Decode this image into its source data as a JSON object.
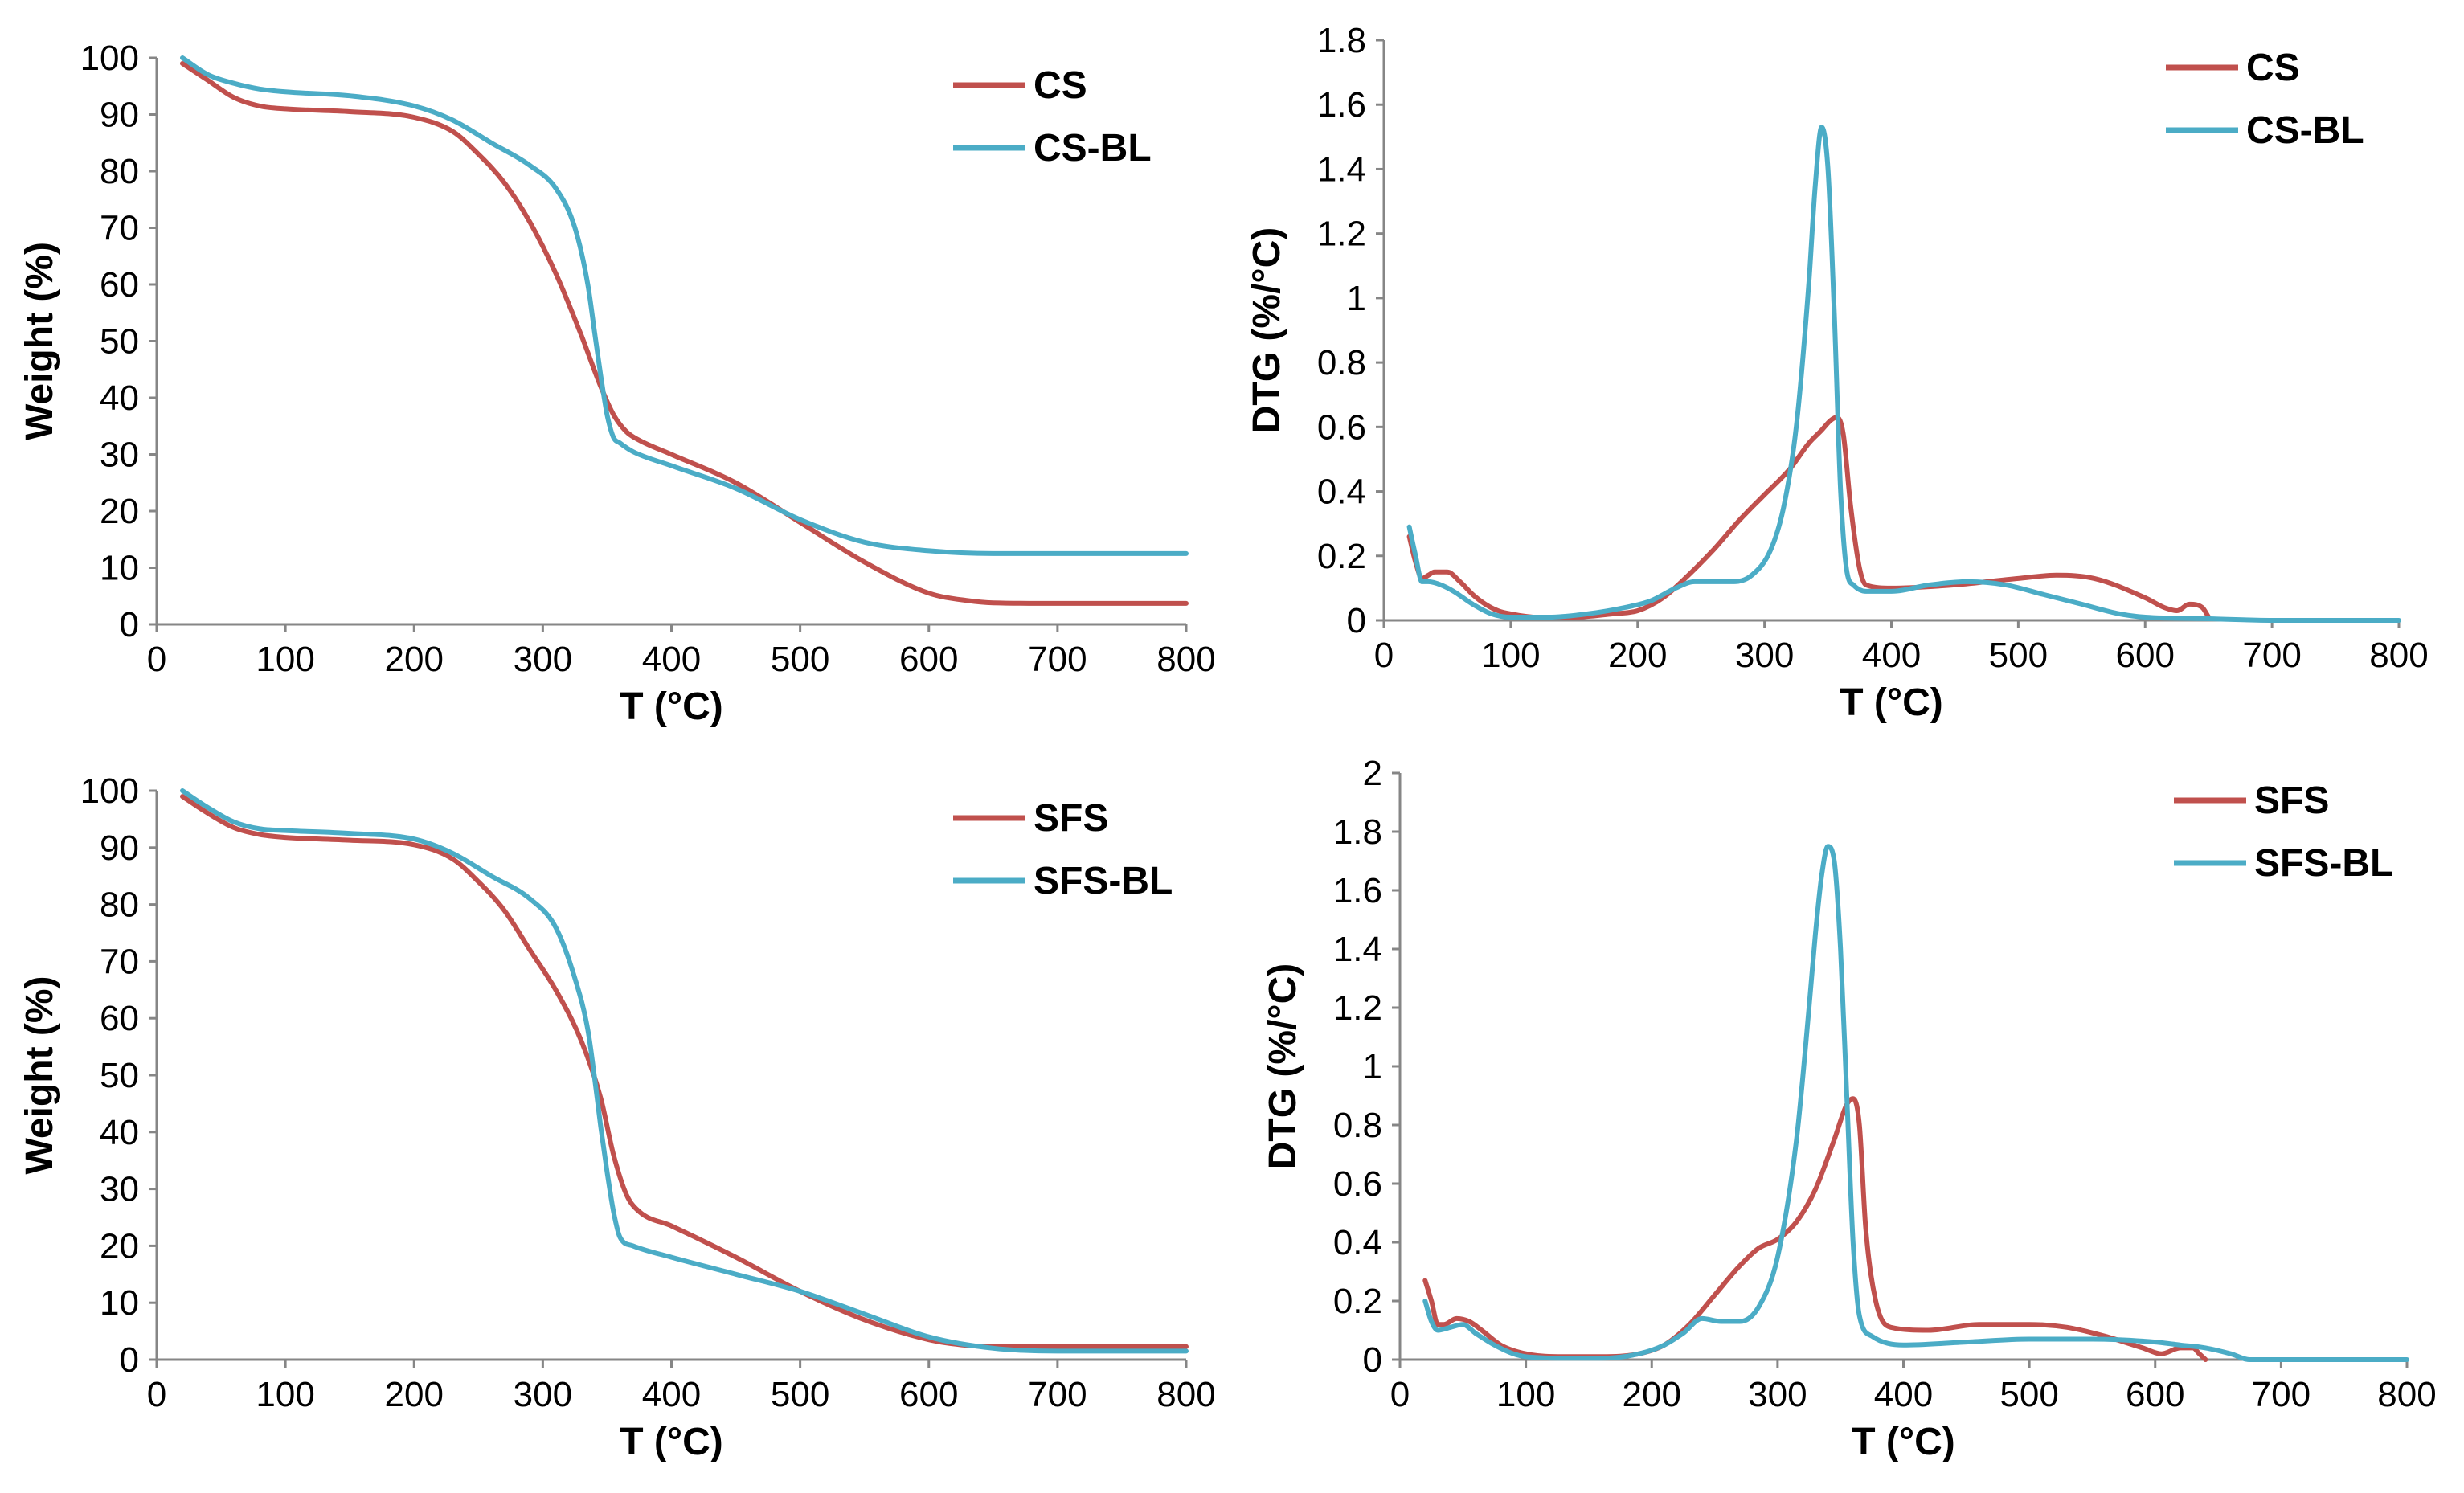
{
  "colors": {
    "red": "#C0504D",
    "blue": "#4BACC6"
  },
  "chart_data": [
    {
      "id": "tga_cs",
      "type": "line",
      "xlabel": "T (°C)",
      "ylabel": "Weight (%)",
      "xlim": [
        0,
        800
      ],
      "ylim": [
        0,
        100
      ],
      "xticks": [
        0,
        100,
        200,
        300,
        400,
        500,
        600,
        700,
        800
      ],
      "yticks": [
        0,
        10,
        20,
        30,
        40,
        50,
        60,
        70,
        80,
        90,
        100
      ],
      "xtick_labels": [
        "0",
        "100",
        "200",
        "300",
        "400",
        "500",
        "600",
        "700",
        "800"
      ],
      "ytick_labels": [
        "0",
        "10",
        "20",
        "30",
        "40",
        "50",
        "60",
        "70",
        "80",
        "90",
        "100"
      ],
      "legend_position": "top-right",
      "series": [
        {
          "name": "CS",
          "color": "#C0504D",
          "x": [
            20,
            40,
            60,
            80,
            100,
            150,
            200,
            230,
            250,
            270,
            290,
            310,
            330,
            345,
            355,
            365,
            375,
            400,
            450,
            500,
            550,
            600,
            630,
            650,
            700,
            750,
            800
          ],
          "y": [
            99,
            96,
            93,
            91.5,
            91,
            90.5,
            89.5,
            87,
            83,
            78,
            71,
            62,
            51,
            42,
            37,
            34,
            32.5,
            30,
            25,
            18,
            11,
            5.5,
            4.2,
            3.8,
            3.7,
            3.7,
            3.7
          ]
        },
        {
          "name": "CS-BL",
          "color": "#4BACC6",
          "x": [
            20,
            40,
            60,
            80,
            100,
            150,
            200,
            230,
            260,
            290,
            310,
            325,
            335,
            340,
            345,
            350,
            355,
            360,
            370,
            400,
            450,
            500,
            550,
            600,
            650,
            700,
            750,
            800
          ],
          "y": [
            100,
            97,
            95.5,
            94.5,
            94,
            93.3,
            91.5,
            89,
            85,
            81,
            77,
            70,
            60,
            52,
            44,
            37,
            33,
            32,
            30.5,
            28,
            24,
            18.5,
            14.5,
            13,
            12.5,
            12.5,
            12.5,
            12.5
          ]
        }
      ]
    },
    {
      "id": "dtg_cs",
      "type": "line",
      "xlabel": "T (°C)",
      "ylabel": "DTG (%/°C)",
      "xlim": [
        0,
        800
      ],
      "ylim": [
        0,
        1.8
      ],
      "xticks": [
        0,
        100,
        200,
        300,
        400,
        500,
        600,
        700,
        800
      ],
      "yticks": [
        0,
        0.2,
        0.4,
        0.6,
        0.8,
        1.0,
        1.2,
        1.4,
        1.6,
        1.8
      ],
      "xtick_labels": [
        "0",
        "100",
        "200",
        "300",
        "400",
        "500",
        "600",
        "700",
        "800"
      ],
      "ytick_labels": [
        "0",
        "0.2",
        "0.4",
        "0.6",
        "0.8",
        "1",
        "1.2",
        "1.4",
        "1.6",
        "1.8"
      ],
      "legend_position": "top-right",
      "series": [
        {
          "name": "CS",
          "color": "#C0504D",
          "x": [
            20,
            25,
            30,
            35,
            40,
            50,
            60,
            70,
            80,
            90,
            100,
            120,
            150,
            180,
            200,
            220,
            240,
            260,
            280,
            300,
            320,
            335,
            345,
            352,
            357,
            362,
            368,
            375,
            380,
            400,
            450,
            500,
            530,
            560,
            600,
            615,
            625,
            635,
            645,
            650
          ],
          "y": [
            0.26,
            0.18,
            0.13,
            0.14,
            0.15,
            0.15,
            0.12,
            0.08,
            0.05,
            0.03,
            0.02,
            0.01,
            0.01,
            0.02,
            0.03,
            0.07,
            0.14,
            0.22,
            0.31,
            0.39,
            0.47,
            0.55,
            0.59,
            0.62,
            0.63,
            0.58,
            0.35,
            0.16,
            0.11,
            0.1,
            0.11,
            0.13,
            0.14,
            0.13,
            0.07,
            0.04,
            0.03,
            0.05,
            0.04,
            0.01
          ]
        },
        {
          "name": "CS-BL",
          "color": "#4BACC6",
          "x": [
            20,
            25,
            30,
            35,
            45,
            55,
            70,
            85,
            100,
            130,
            160,
            190,
            210,
            230,
            245,
            260,
            275,
            290,
            305,
            315,
            325,
            335,
            340,
            345,
            350,
            355,
            360,
            365,
            370,
            380,
            400,
            430,
            460,
            490,
            520,
            550,
            580,
            600,
            650,
            700,
            750,
            800
          ],
          "y": [
            0.29,
            0.2,
            0.12,
            0.12,
            0.11,
            0.09,
            0.05,
            0.02,
            0.01,
            0.01,
            0.02,
            0.04,
            0.06,
            0.1,
            0.12,
            0.12,
            0.12,
            0.14,
            0.22,
            0.35,
            0.6,
            1.05,
            1.35,
            1.53,
            1.4,
            0.95,
            0.4,
            0.15,
            0.11,
            0.09,
            0.09,
            0.11,
            0.12,
            0.11,
            0.08,
            0.05,
            0.02,
            0.01,
            0.005,
            0.0,
            0.0,
            0.0
          ]
        }
      ]
    },
    {
      "id": "tga_sfs",
      "type": "line",
      "xlabel": "T (°C)",
      "ylabel": "Weight (%)",
      "xlim": [
        0,
        800
      ],
      "ylim": [
        0,
        100
      ],
      "xticks": [
        0,
        100,
        200,
        300,
        400,
        500,
        600,
        700,
        800
      ],
      "yticks": [
        0,
        10,
        20,
        30,
        40,
        50,
        60,
        70,
        80,
        90,
        100
      ],
      "xtick_labels": [
        "0",
        "100",
        "200",
        "300",
        "400",
        "500",
        "600",
        "700",
        "800"
      ],
      "ytick_labels": [
        "0",
        "10",
        "20",
        "30",
        "40",
        "50",
        "60",
        "70",
        "80",
        "90",
        "100"
      ],
      "legend_position": "top-right",
      "series": [
        {
          "name": "SFS",
          "color": "#C0504D",
          "x": [
            20,
            40,
            60,
            80,
            100,
            150,
            200,
            230,
            250,
            270,
            290,
            310,
            330,
            345,
            355,
            365,
            375,
            400,
            450,
            500,
            550,
            600,
            630,
            650,
            700,
            750,
            800
          ],
          "y": [
            99,
            96,
            93.5,
            92.3,
            91.8,
            91.3,
            90.5,
            88,
            84,
            79,
            72,
            65,
            56,
            46,
            36,
            29,
            26,
            23.5,
            18,
            12,
            7,
            3.5,
            2.5,
            2.3,
            2.3,
            2.3,
            2.3
          ]
        },
        {
          "name": "SFS-BL",
          "color": "#4BACC6",
          "x": [
            20,
            40,
            60,
            80,
            100,
            150,
            200,
            230,
            260,
            290,
            310,
            325,
            335,
            340,
            345,
            350,
            355,
            360,
            370,
            400,
            450,
            500,
            550,
            600,
            650,
            700,
            750,
            800
          ],
          "y": [
            100,
            97,
            94.5,
            93.3,
            93,
            92.5,
            91.5,
            89,
            85,
            81,
            76,
            67,
            58,
            50,
            41,
            33,
            26,
            21.5,
            20,
            18,
            15,
            12,
            8,
            4,
            2,
            1.5,
            1.5,
            1.5
          ]
        }
      ]
    },
    {
      "id": "dtg_sfs",
      "type": "line",
      "xlabel": "T (°C)",
      "ylabel": "DTG (%/°C)",
      "xlim": [
        0,
        800
      ],
      "ylim": [
        0,
        2
      ],
      "xticks": [
        0,
        100,
        200,
        300,
        400,
        500,
        600,
        700,
        800
      ],
      "yticks": [
        0,
        0.2,
        0.4,
        0.6,
        0.8,
        1.0,
        1.2,
        1.4,
        1.6,
        1.8,
        2.0
      ],
      "xtick_labels": [
        "0",
        "100",
        "200",
        "300",
        "400",
        "500",
        "600",
        "700",
        "800"
      ],
      "ytick_labels": [
        "0",
        "0.2",
        "0.4",
        "0.6",
        "0.8",
        "1",
        "1.2",
        "1.4",
        "1.6",
        "1.8",
        "2"
      ],
      "legend_position": "top-right",
      "series": [
        {
          "name": "SFS",
          "color": "#C0504D",
          "x": [
            20,
            25,
            30,
            35,
            45,
            55,
            65,
            80,
            100,
            130,
            160,
            190,
            210,
            230,
            250,
            270,
            285,
            300,
            315,
            330,
            345,
            355,
            360,
            365,
            370,
            378,
            390,
            420,
            460,
            500,
            530,
            560,
            590,
            605,
            620,
            630,
            635,
            640
          ],
          "y": [
            0.27,
            0.2,
            0.12,
            0.12,
            0.14,
            0.13,
            0.1,
            0.05,
            0.02,
            0.01,
            0.01,
            0.02,
            0.05,
            0.12,
            0.22,
            0.32,
            0.38,
            0.41,
            0.47,
            0.58,
            0.75,
            0.87,
            0.89,
            0.8,
            0.45,
            0.2,
            0.11,
            0.1,
            0.12,
            0.12,
            0.11,
            0.08,
            0.04,
            0.02,
            0.04,
            0.04,
            0.02,
            0.0
          ]
        },
        {
          "name": "SFS-BL",
          "color": "#4BACC6",
          "x": [
            20,
            25,
            30,
            40,
            50,
            60,
            75,
            90,
            100,
            130,
            160,
            190,
            210,
            225,
            240,
            255,
            270,
            285,
            300,
            315,
            325,
            330,
            335,
            340,
            345,
            350,
            355,
            360,
            365,
            375,
            400,
            450,
            500,
            550,
            600,
            620,
            640,
            660,
            675,
            700,
            750,
            800
          ],
          "y": [
            0.2,
            0.13,
            0.1,
            0.11,
            0.12,
            0.09,
            0.05,
            0.02,
            0.01,
            0.005,
            0.005,
            0.02,
            0.05,
            0.09,
            0.14,
            0.13,
            0.13,
            0.18,
            0.35,
            0.75,
            1.2,
            1.45,
            1.65,
            1.75,
            1.7,
            1.4,
            0.9,
            0.4,
            0.15,
            0.08,
            0.05,
            0.06,
            0.07,
            0.07,
            0.06,
            0.05,
            0.04,
            0.02,
            0.0,
            0.0,
            0.0,
            0.0
          ]
        }
      ]
    }
  ]
}
